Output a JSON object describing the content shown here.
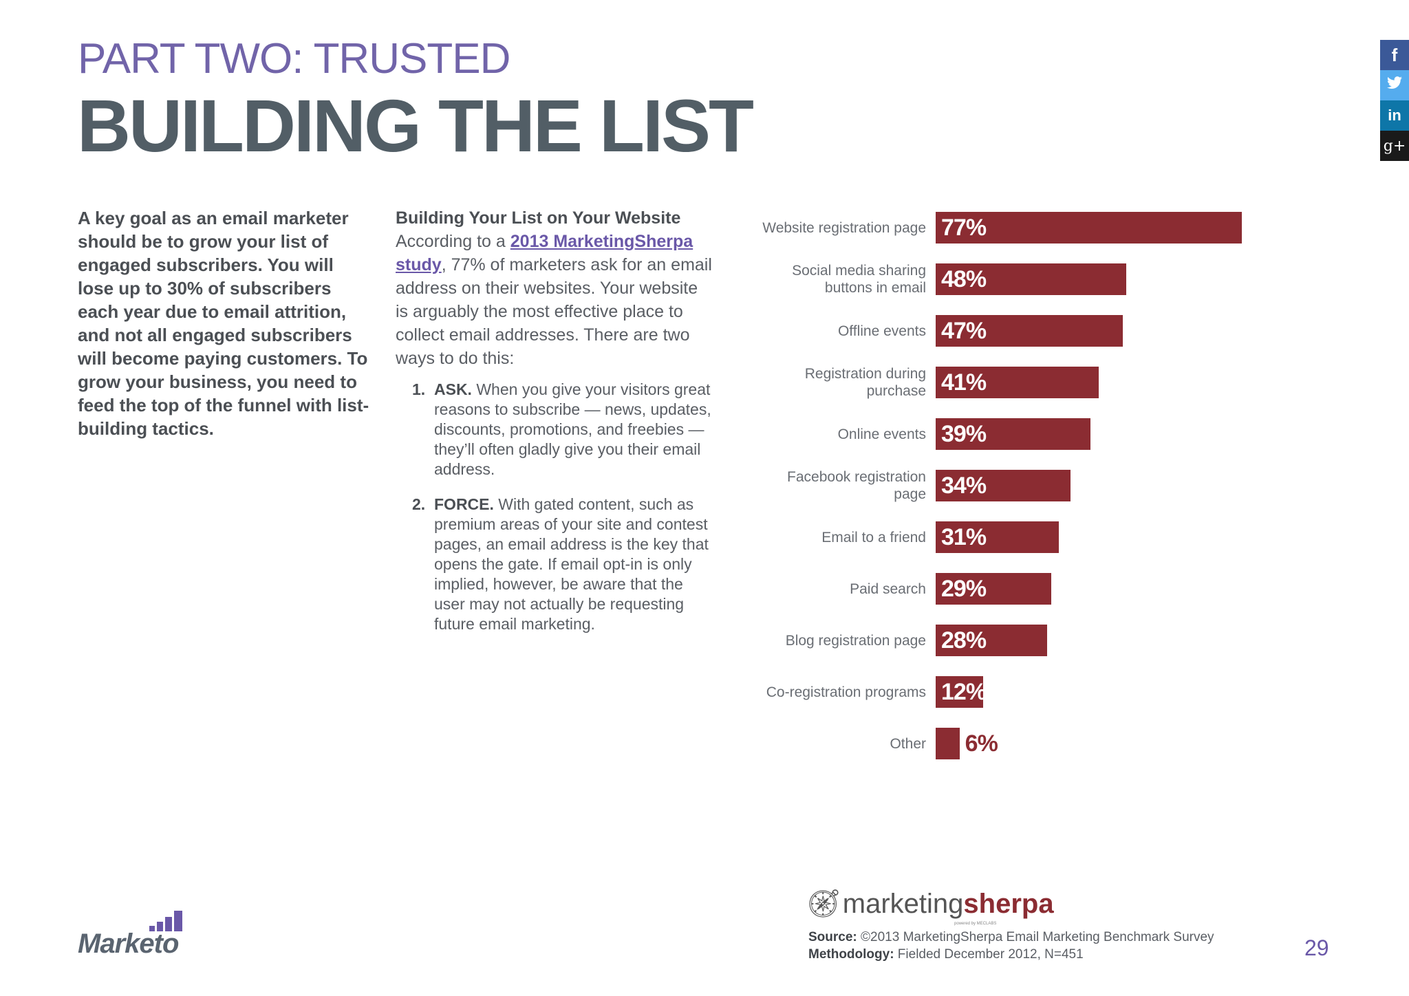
{
  "header": {
    "part_label": "PART TWO: TRUSTED",
    "title": "BUILDING THE LIST"
  },
  "social": [
    {
      "icon": "facebook-icon",
      "glyph": "f",
      "color": "#3b5998"
    },
    {
      "icon": "twitter-icon",
      "glyph": "t",
      "color": "#55acee"
    },
    {
      "icon": "linkedin-icon",
      "glyph": "in",
      "color": "#0e76a8"
    },
    {
      "icon": "google-plus-icon",
      "glyph": "g+",
      "color": "#1a1a1a"
    }
  ],
  "intro": "A key goal as an email marketer should be to grow your list of engaged subscribers. You will lose up to 30% of subscribers each year due to email attrition, and not all engaged subscribers will become paying customers. To grow your business, you need to feed the top of the funnel with list-building tactics.",
  "website": {
    "heading": "Building Your List on Your Website",
    "lead_before": "According to a ",
    "link_text": "2013 MarketingSherpa study",
    "lead_after": ", 77% of marketers ask for an email address on their websites. Your website is arguably the most effective place to collect email addresses. There are two ways to do this:",
    "methods": [
      {
        "num": "1.",
        "title": "ASK.",
        "text": " When you give your visitors great reasons to subscribe — news, updates, discounts, promotions, and freebies — they’ll often gladly give you their email address."
      },
      {
        "num": "2.",
        "title": "FORCE.",
        "text": " With gated content, such as premium areas of your site and contest pages, an email address is the key that opens the gate. If email opt-in is only implied, however, be aware that the user may not actually be requesting future email marketing."
      }
    ]
  },
  "chart_data": {
    "type": "bar",
    "orientation": "horizontal",
    "categories": [
      "Website registration page",
      "Social media sharing buttons in email",
      "Offline events",
      "Registration during purchase",
      "Online events",
      "Facebook registration page",
      "Email to a friend",
      "Paid search",
      "Blog registration page",
      "Co-registration programs",
      "Other"
    ],
    "values": [
      77,
      48,
      47,
      41,
      39,
      34,
      31,
      29,
      28,
      12,
      6
    ],
    "value_labels": [
      "77%",
      "48%",
      "47%",
      "41%",
      "39%",
      "34%",
      "31%",
      "29%",
      "28%",
      "12%",
      "6%"
    ],
    "bar_color": "#8b2c32",
    "xlim": [
      0,
      100
    ]
  },
  "footer": {
    "marketo_word": "Marketo",
    "sherpa_a": "marketing",
    "sherpa_b": "sherpa",
    "sherpa_tag": "powered by MECLABS",
    "source_key": "Source:",
    "source_text": " ©2013 MarketingSherpa Email Marketing Benchmark Survey",
    "method_key": "Methodology:",
    "method_text": " Fielded December 2012, N=451",
    "page_number": "29"
  }
}
